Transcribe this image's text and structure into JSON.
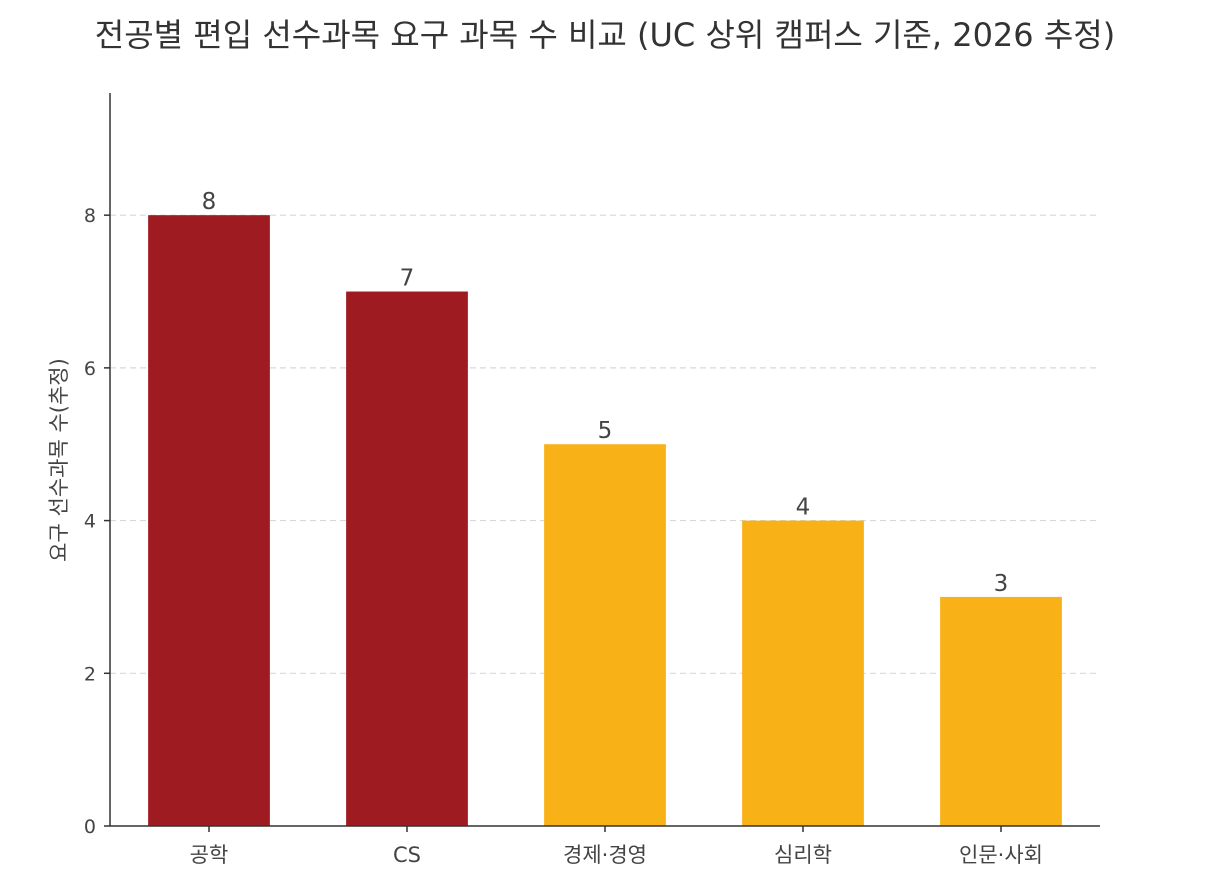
{
  "chart_data": {
    "type": "bar",
    "title": "전공별 편입 선수과목 요구 과목 수 비교 (UC 상위 캠퍼스 기준, 2026 추정)",
    "xlabel": "",
    "ylabel": "요구 선수과목 수(추정)",
    "categories": [
      "공학",
      "CS",
      "경제·경영",
      "심리학",
      "인문·사회"
    ],
    "values": [
      8,
      7,
      5,
      4,
      3
    ],
    "data_labels": [
      "8",
      "7",
      "5",
      "4",
      "3"
    ],
    "bar_colors": [
      "#9e1c21",
      "#9e1c21",
      "#f9b118",
      "#f9b118",
      "#f9b118"
    ],
    "ylim": [
      0,
      9.6
    ],
    "yticks": [
      0,
      2,
      4,
      6,
      8
    ],
    "ytick_labels": [
      "0",
      "2",
      "4",
      "6",
      "8"
    ],
    "grid": true,
    "grid_axis": "y",
    "legend": "none"
  }
}
